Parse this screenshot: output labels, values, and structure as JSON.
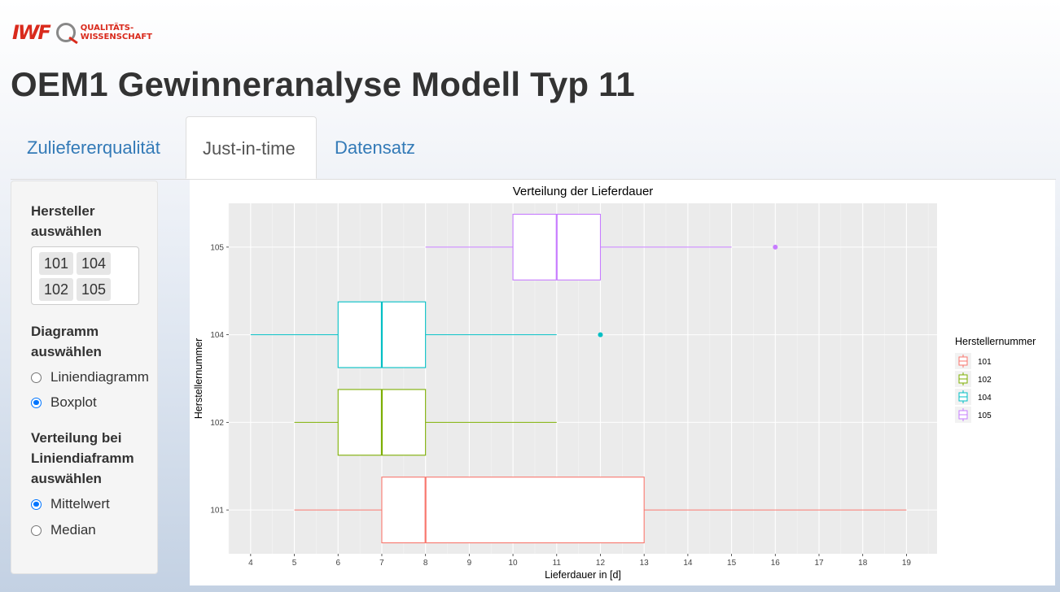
{
  "logo": {
    "mark": "IWF",
    "text_line1": "QUALITÄTS-",
    "text_line2": "WISSENSCHAFT"
  },
  "page_title": "OEM1 Gewinneranalyse Modell Typ 11",
  "tabs": [
    {
      "label": "Zuliefererqualität",
      "active": false
    },
    {
      "label": "Just-in-time",
      "active": true
    },
    {
      "label": "Datensatz",
      "active": false
    }
  ],
  "sidebar": {
    "hersteller_label": [
      "Hersteller",
      "auswählen"
    ],
    "hersteller_selected": [
      "101",
      "104",
      "102",
      "105"
    ],
    "diagramm_label": [
      "Diagramm",
      "auswählen"
    ],
    "diagramm_options": [
      {
        "label": "Liniendiagramm",
        "checked": false
      },
      {
        "label": "Boxplot",
        "checked": true
      }
    ],
    "verteilung_label": [
      "Verteilung bei",
      "Liniendiaframm",
      "auswählen"
    ],
    "verteilung_options": [
      {
        "label": "Mittelwert",
        "checked": true
      },
      {
        "label": "Median",
        "checked": false
      }
    ]
  },
  "chart_data": {
    "type": "boxplot",
    "orientation": "horizontal",
    "title": "Verteilung der Lieferdauer",
    "xlabel": "Lieferdauer in [d]",
    "ylabel": "Herstellernummer",
    "xlim": [
      3.5,
      19.7
    ],
    "xticks": [
      4,
      5,
      6,
      7,
      8,
      9,
      10,
      11,
      12,
      13,
      14,
      15,
      16,
      17,
      18,
      19
    ],
    "categories": [
      "101",
      "102",
      "104",
      "105"
    ],
    "legend_title": "Herstellernummer",
    "legend_position": "right",
    "grid": true,
    "series": [
      {
        "name": "101",
        "color": "#F8766D",
        "min": 5,
        "q1": 7,
        "median": 8,
        "q3": 13,
        "max": 19,
        "outliers": []
      },
      {
        "name": "102",
        "color": "#7CAE00",
        "min": 5,
        "q1": 6,
        "median": 7,
        "q3": 8,
        "max": 11,
        "outliers": []
      },
      {
        "name": "104",
        "color": "#00BFC4",
        "min": 4,
        "q1": 6,
        "median": 7,
        "q3": 8,
        "max": 11,
        "outliers": [
          12
        ]
      },
      {
        "name": "105",
        "color": "#C77CFF",
        "min": 8,
        "q1": 10,
        "median": 11,
        "q3": 12,
        "max": 15,
        "outliers": [
          16
        ]
      }
    ]
  }
}
